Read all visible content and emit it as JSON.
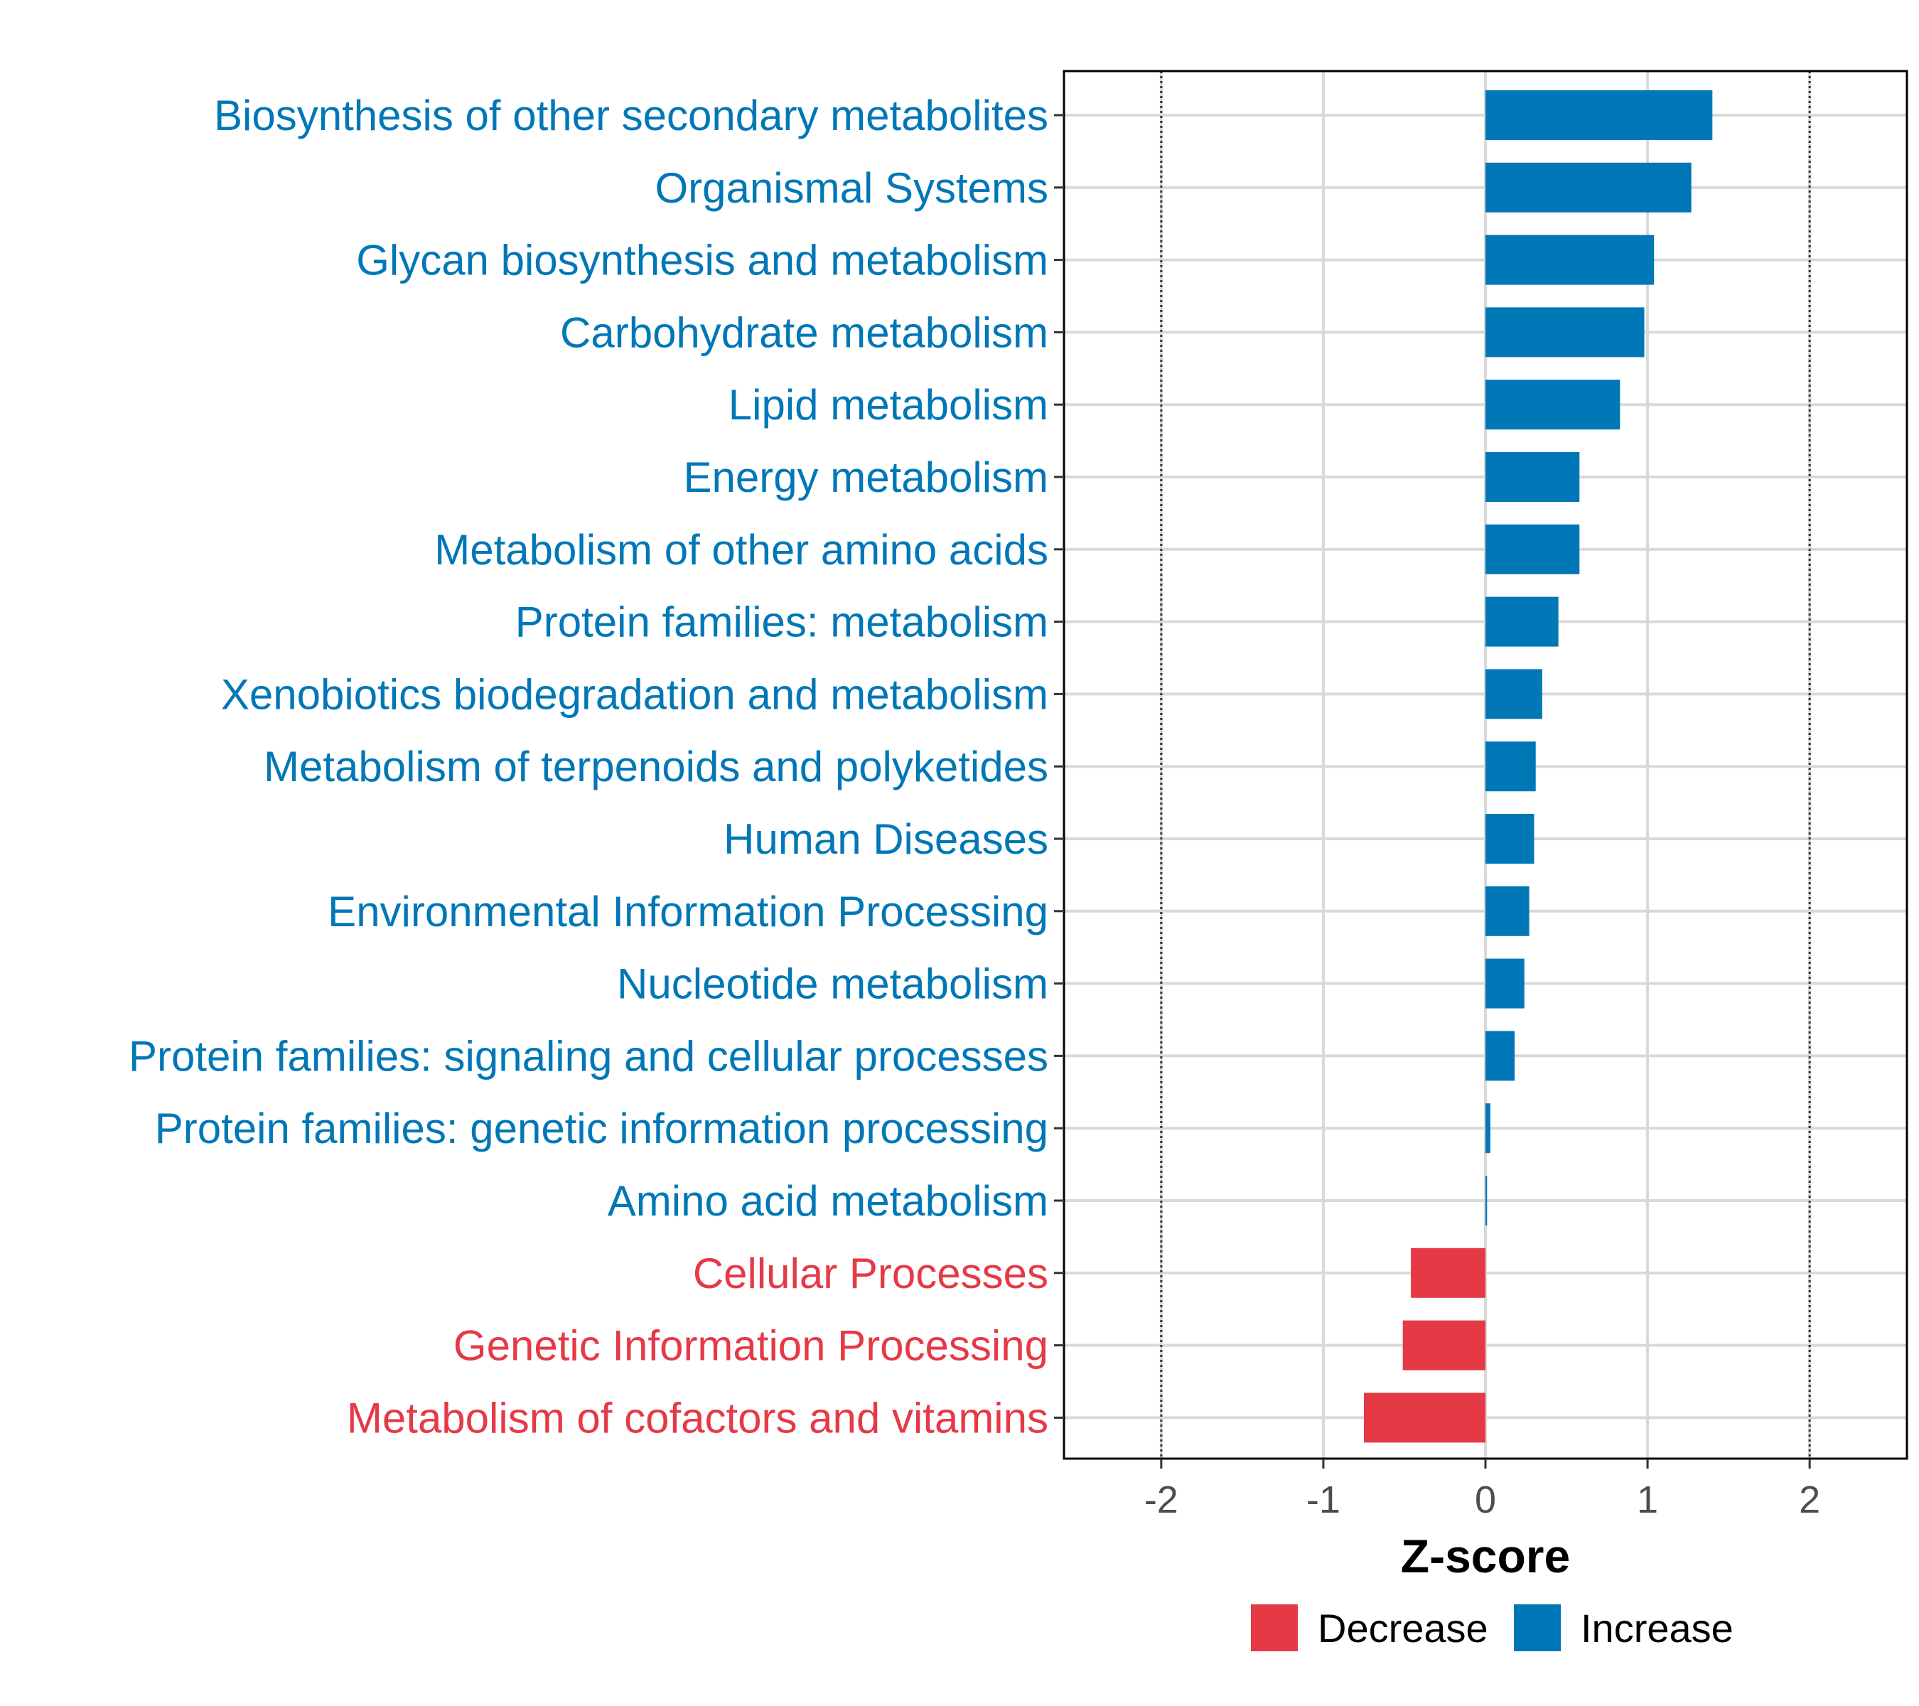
{
  "chart_data": {
    "type": "bar",
    "orientation": "horizontal",
    "xlabel": "Z-score",
    "xlim": [
      -2.6,
      2.6
    ],
    "xticks": [
      -2,
      -1,
      0,
      1,
      2
    ],
    "xtick_labels": [
      "-2",
      "-1",
      "0",
      "1",
      "2"
    ],
    "reference_lines": [
      -2,
      2
    ],
    "categories": [
      "Biosynthesis of other secondary metabolites",
      "Organismal Systems",
      "Glycan biosynthesis and metabolism",
      "Carbohydrate metabolism",
      "Lipid metabolism",
      "Energy metabolism",
      "Metabolism of other amino acids",
      "Protein families: metabolism",
      "Xenobiotics biodegradation and metabolism",
      "Metabolism of terpenoids and polyketides",
      "Human Diseases",
      "Environmental Information Processing",
      "Nucleotide metabolism",
      "Protein families: signaling and cellular processes",
      "Protein families: genetic information processing",
      "Amino acid metabolism",
      "Cellular Processes",
      "Genetic Information Processing",
      "Metabolism of cofactors and vitamins"
    ],
    "values": [
      1.4,
      1.27,
      1.04,
      0.98,
      0.83,
      0.58,
      0.58,
      0.45,
      0.35,
      0.31,
      0.3,
      0.27,
      0.24,
      0.18,
      0.03,
      0.01,
      -0.46,
      -0.51,
      -0.75
    ],
    "groups": [
      "Increase",
      "Increase",
      "Increase",
      "Increase",
      "Increase",
      "Increase",
      "Increase",
      "Increase",
      "Increase",
      "Increase",
      "Increase",
      "Increase",
      "Increase",
      "Increase",
      "Increase",
      "Increase",
      "Decrease",
      "Decrease",
      "Decrease"
    ],
    "legend": [
      {
        "name": "Decrease",
        "color": "#e63946"
      },
      {
        "name": "Increase",
        "color": "#0077b6"
      }
    ],
    "legend_position": "bottom"
  },
  "colors": {
    "increase": "#0077b6",
    "decrease": "#e63946",
    "grid": "#d9d9d9",
    "panel_border": "#000000"
  }
}
